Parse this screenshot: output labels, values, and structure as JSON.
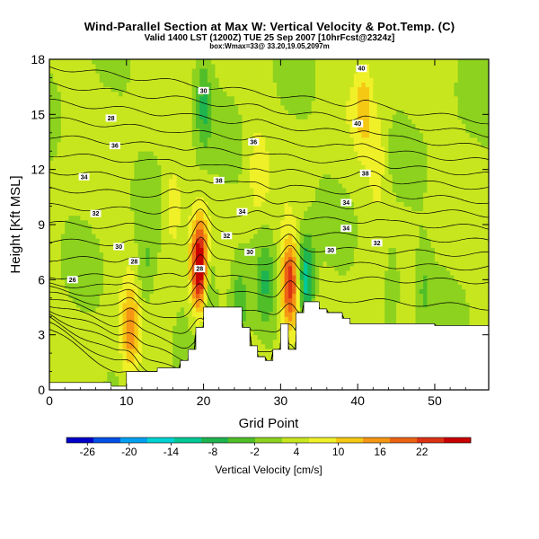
{
  "chart_data": {
    "type": "heatmap",
    "title": "Wind-Parallel Section at Max W: Vertical Velocity & Pot.Temp. (C)",
    "subtitle": "Valid 1400 LST (1200Z) TUE 25 Sep 2007 [10hrFcst@2324z]",
    "subtitle2": "box:Wmax=33@ 33.20,19.05,2097m",
    "xlabel": "Grid Point",
    "ylabel": "Height [Kft MSL]",
    "xlim": [
      0,
      57
    ],
    "ylim": [
      0,
      18
    ],
    "xticks": [
      0,
      10,
      20,
      30,
      40,
      50
    ],
    "yticks": [
      0,
      3,
      6,
      9,
      12,
      15,
      18
    ],
    "colorbar": {
      "label": "Vertical Velocity [cm/s]",
      "ticks": [
        -26,
        -20,
        -14,
        -8,
        -2,
        4,
        10,
        16,
        22
      ],
      "range": [
        -29,
        29
      ],
      "colors": [
        "#0000c8",
        "#0050e6",
        "#00a0f0",
        "#00d2d2",
        "#00c896",
        "#1eb450",
        "#50be28",
        "#8cd21e",
        "#c8e61e",
        "#f0f028",
        "#f5c814",
        "#f59614",
        "#eb6414",
        "#dc3214",
        "#c80000"
      ]
    },
    "terrain": [
      [
        0,
        0.4
      ],
      [
        6,
        0.4
      ],
      [
        8,
        0.4
      ],
      [
        8,
        0.2
      ],
      [
        10,
        0.2
      ],
      [
        10,
        1
      ],
      [
        14,
        1
      ],
      [
        14,
        1.2
      ],
      [
        17,
        1.2
      ],
      [
        17,
        1.6
      ],
      [
        18,
        1.6
      ],
      [
        18,
        2.2
      ],
      [
        19,
        2.2
      ],
      [
        19,
        3.4
      ],
      [
        20,
        3.4
      ],
      [
        20,
        4.5
      ],
      [
        25,
        4.5
      ],
      [
        25,
        3.4
      ],
      [
        26,
        3.4
      ],
      [
        26,
        2.4
      ],
      [
        27,
        2.4
      ],
      [
        27,
        1.8
      ],
      [
        28,
        1.8
      ],
      [
        28,
        1.6
      ],
      [
        29,
        1.6
      ],
      [
        29,
        2.2
      ],
      [
        30,
        2.2
      ],
      [
        30,
        3.6
      ],
      [
        31,
        3.6
      ],
      [
        31,
        2.2
      ],
      [
        32,
        2.2
      ],
      [
        32,
        4.2
      ],
      [
        33,
        4.2
      ],
      [
        33,
        4.8
      ],
      [
        35,
        4.8
      ],
      [
        35,
        4.4
      ],
      [
        36,
        4.4
      ],
      [
        36,
        4.2
      ],
      [
        38,
        4.2
      ],
      [
        38,
        3.9
      ],
      [
        39,
        3.9
      ],
      [
        39,
        3.6
      ],
      [
        50,
        3.6
      ],
      [
        50,
        3.5
      ],
      [
        57,
        3.5
      ]
    ],
    "updrafts": [
      {
        "x": 10.5,
        "z": 3.2,
        "w": 12
      },
      {
        "x": 19.6,
        "z": 6.6,
        "w": 33
      },
      {
        "x": 31.2,
        "z": 5.8,
        "w": 22
      },
      {
        "x": 40.8,
        "z": 15.5,
        "w": 8
      },
      {
        "x": 42.5,
        "z": 12.5,
        "w": 6
      },
      {
        "x": 16,
        "z": 10,
        "w": 6
      },
      {
        "x": 27,
        "z": 12,
        "w": 5
      }
    ],
    "downdrafts": [
      {
        "x": 20.4,
        "z": 6.0,
        "w": -14
      },
      {
        "x": 33.3,
        "z": 6.0,
        "w": -16
      },
      {
        "x": 24.5,
        "z": 4.5,
        "w": -8
      },
      {
        "x": 12.5,
        "z": 6.5,
        "w": -6
      },
      {
        "x": 44.5,
        "z": 6.0,
        "w": -6
      },
      {
        "x": 48.5,
        "z": 5.5,
        "w": -5
      },
      {
        "x": 20.0,
        "z": 15.5,
        "w": -9
      },
      {
        "x": 28,
        "z": 6.0,
        "w": -7
      }
    ],
    "contour_labels": [
      {
        "text": "40",
        "x": 40.5,
        "z": 17.5
      },
      {
        "text": "30",
        "x": 20.0,
        "z": 16.3
      },
      {
        "text": "28",
        "x": 8.0,
        "z": 14.8
      },
      {
        "text": "40",
        "x": 40.0,
        "z": 14.5
      },
      {
        "text": "36",
        "x": 26.5,
        "z": 13.5
      },
      {
        "text": "36",
        "x": 8.5,
        "z": 13.3
      },
      {
        "text": "38",
        "x": 41.0,
        "z": 11.8
      },
      {
        "text": "34",
        "x": 4.5,
        "z": 11.6
      },
      {
        "text": "38",
        "x": 22.0,
        "z": 11.4
      },
      {
        "text": "34",
        "x": 38.5,
        "z": 10.2
      },
      {
        "text": "34",
        "x": 25.0,
        "z": 9.7
      },
      {
        "text": "32",
        "x": 6.0,
        "z": 9.6
      },
      {
        "text": "34",
        "x": 38.5,
        "z": 8.8
      },
      {
        "text": "32",
        "x": 23.0,
        "z": 8.4
      },
      {
        "text": "32",
        "x": 42.5,
        "z": 8.0
      },
      {
        "text": "30",
        "x": 9.0,
        "z": 7.8
      },
      {
        "text": "30",
        "x": 26.0,
        "z": 7.5
      },
      {
        "text": "30",
        "x": 36.5,
        "z": 7.6
      },
      {
        "text": "28",
        "x": 11.0,
        "z": 7.0
      },
      {
        "text": "28",
        "x": 19.5,
        "z": 6.6
      },
      {
        "text": "26",
        "x": 3.0,
        "z": 6.0
      }
    ]
  }
}
